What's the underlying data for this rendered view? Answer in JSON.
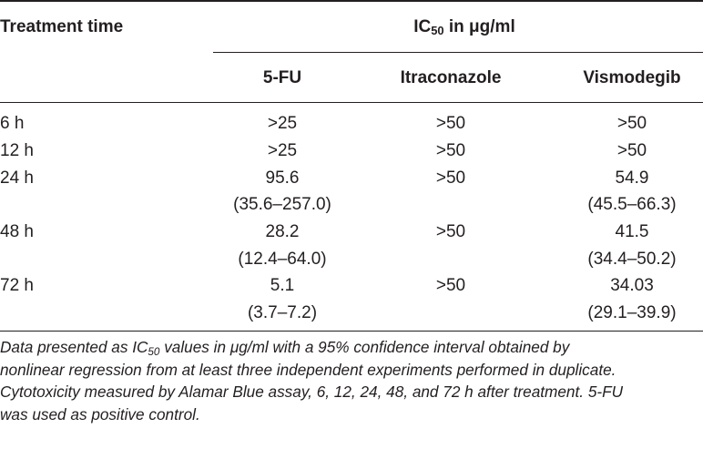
{
  "table": {
    "header": {
      "row_label": "Treatment time",
      "group_prefix": "IC",
      "group_sub": "50",
      "group_suffix": " in μg/ml",
      "columns": [
        "5-FU",
        "Itraconazole",
        "Vismodegib"
      ]
    },
    "rows": [
      {
        "time": "6 h",
        "fu": ">25",
        "fu_ci": "",
        "itra": ">50",
        "vismo": ">50",
        "vismo_ci": ""
      },
      {
        "time": "12 h",
        "fu": ">25",
        "fu_ci": "",
        "itra": ">50",
        "vismo": ">50",
        "vismo_ci": ""
      },
      {
        "time": "24 h",
        "fu": "95.6",
        "fu_ci": "(35.6–257.0)",
        "itra": ">50",
        "vismo": "54.9",
        "vismo_ci": "(45.5–66.3)"
      },
      {
        "time": "48 h",
        "fu": "28.2",
        "fu_ci": "(12.4–64.0)",
        "itra": ">50",
        "vismo": "41.5",
        "vismo_ci": "(34.4–50.2)"
      },
      {
        "time": "72 h",
        "fu": "5.1",
        "fu_ci": "(3.7–7.2)",
        "itra": ">50",
        "vismo": "34.03",
        "vismo_ci": "(29.1–39.9)"
      }
    ]
  },
  "footnote": {
    "line1_prefix": "Data presented as IC",
    "line1_sub": "50",
    "line1_suffix": " values in μg/ml with a 95% confidence interval obtained by",
    "line2": "nonlinear regression from at least three independent experiments performed in duplicate.",
    "line3": "Cytotoxicity measured by Alamar Blue assay, 6, 12, 24, 48, and 72 h after treatment. 5-FU",
    "line4": "was used as positive control."
  }
}
